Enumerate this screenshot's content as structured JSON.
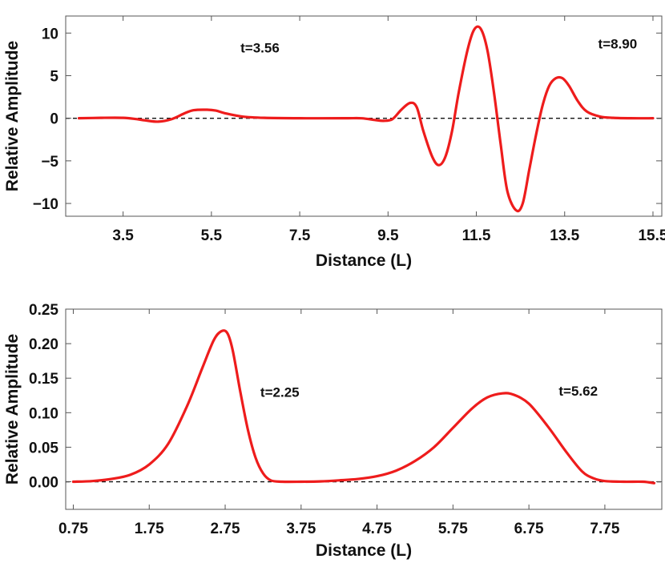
{
  "chart_data": [
    {
      "type": "line",
      "xlabel": "Distance (L)",
      "ylabel": "Relative Amplitude",
      "xlim": [
        2.2,
        15.7
      ],
      "ylim": [
        -11.5,
        12
      ],
      "xticks": [
        3.5,
        5.5,
        7.5,
        9.5,
        11.5,
        13.5,
        15.5
      ],
      "xtick_labels": [
        "3.5",
        "5.5",
        "7.5",
        "9.5",
        "11.5",
        "13.5",
        "15.5"
      ],
      "yticks": [
        -10,
        -5,
        0,
        5,
        10
      ],
      "ytick_labels": [
        "−10",
        "−5",
        "0",
        "5",
        "10"
      ],
      "zero_line": true,
      "color": "#ee1c1c",
      "annotations": [
        {
          "text": "t=3.56",
          "x": 6.6,
          "y": 7.7
        },
        {
          "text": "t=8.90",
          "x": 14.7,
          "y": 8.2
        }
      ],
      "series": [
        {
          "x": [
            2.5,
            3.0,
            3.5,
            3.8,
            4.0,
            4.3,
            4.6,
            4.9,
            5.1,
            5.4,
            5.6,
            5.8,
            6.2,
            6.7,
            7.5,
            8.5,
            8.9,
            9.2,
            9.4,
            9.6,
            9.8,
            10.0,
            10.15,
            10.3,
            10.5,
            10.65,
            10.8,
            10.95,
            11.1,
            11.3,
            11.45,
            11.6,
            11.75,
            11.9,
            12.05,
            12.2,
            12.4,
            12.55,
            12.7,
            12.85,
            13.0,
            13.15,
            13.3,
            13.45,
            13.6,
            13.8,
            14.0,
            14.3,
            14.6,
            15.0,
            15.5
          ],
          "y": [
            0.0,
            0.05,
            0.05,
            -0.1,
            -0.25,
            -0.4,
            -0.1,
            0.6,
            0.95,
            1.0,
            0.9,
            0.6,
            0.2,
            0.05,
            0.0,
            0.0,
            0.0,
            -0.2,
            -0.3,
            -0.1,
            1.0,
            1.8,
            1.3,
            -1.5,
            -4.5,
            -5.5,
            -4.5,
            -1.5,
            3.0,
            8.0,
            10.4,
            10.5,
            8.0,
            3.0,
            -3.0,
            -8.5,
            -10.8,
            -10.0,
            -6.0,
            -2.0,
            1.5,
            3.8,
            4.7,
            4.7,
            3.8,
            2.0,
            0.8,
            0.2,
            0.05,
            0.0,
            0.0
          ]
        }
      ]
    },
    {
      "type": "line",
      "xlabel": "Distance (L)",
      "ylabel": "Relative Amplitude",
      "xlim": [
        0.65,
        8.5
      ],
      "ylim": [
        -0.04,
        0.25
      ],
      "xticks": [
        0.75,
        1.75,
        2.75,
        3.75,
        4.75,
        5.75,
        6.75,
        7.75
      ],
      "xtick_labels": [
        "0.75",
        "1.75",
        "2.75",
        "3.75",
        "4.75",
        "5.75",
        "6.75",
        "7.75"
      ],
      "yticks": [
        0.0,
        0.05,
        0.1,
        0.15,
        0.2,
        0.25
      ],
      "ytick_labels": [
        "0.00",
        "0.05",
        "0.10",
        "0.15",
        "0.20",
        "0.25"
      ],
      "zero_line": true,
      "color": "#ee1c1c",
      "annotations": [
        {
          "text": "t=2.25",
          "x": 3.47,
          "y": 0.123
        },
        {
          "text": "t=5.62",
          "x": 7.4,
          "y": 0.125
        }
      ],
      "series": [
        {
          "x": [
            0.75,
            1.0,
            1.25,
            1.5,
            1.75,
            2.0,
            2.25,
            2.45,
            2.6,
            2.7,
            2.78,
            2.85,
            2.95,
            3.05,
            3.15,
            3.25,
            3.35,
            3.5,
            3.75,
            4.0,
            4.25,
            4.5,
            4.75,
            5.0,
            5.25,
            5.5,
            5.75,
            6.0,
            6.2,
            6.4,
            6.55,
            6.75,
            7.0,
            7.25,
            7.45,
            7.6,
            7.75,
            8.0,
            8.25,
            8.4
          ],
          "y": [
            0.0,
            0.001,
            0.004,
            0.01,
            0.025,
            0.055,
            0.11,
            0.165,
            0.205,
            0.218,
            0.215,
            0.19,
            0.13,
            0.075,
            0.035,
            0.012,
            0.002,
            0.0,
            0.0,
            0.0005,
            0.002,
            0.004,
            0.008,
            0.016,
            0.03,
            0.05,
            0.078,
            0.106,
            0.122,
            0.128,
            0.126,
            0.113,
            0.08,
            0.042,
            0.015,
            0.005,
            0.001,
            0.0,
            0.0,
            -0.002
          ]
        }
      ]
    }
  ]
}
